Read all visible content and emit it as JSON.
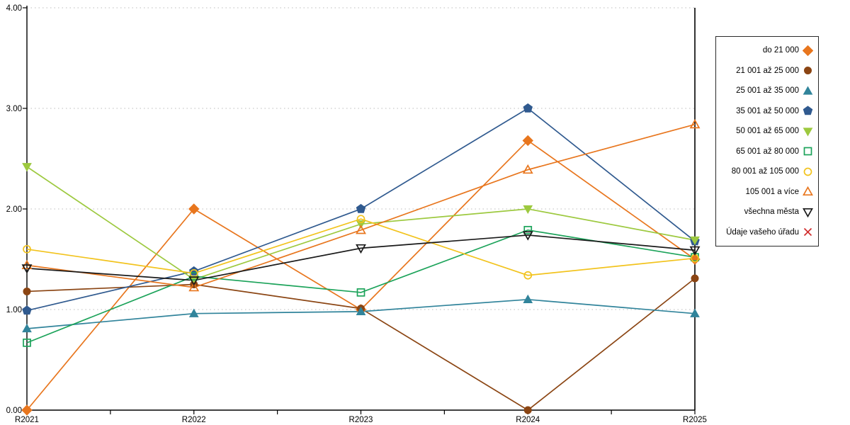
{
  "chart_data": {
    "type": "line",
    "title": "",
    "x_categories": [
      "R2021",
      "R2022",
      "R2023",
      "R2024",
      "R2025"
    ],
    "y_tick_labels": [
      "4.00",
      "3.00",
      "2.00",
      "1.00",
      "0.00"
    ],
    "y_tick_values": [
      4,
      3,
      2,
      1,
      0
    ],
    "ylim": [
      0,
      4
    ],
    "grid": "horizontal-dotted",
    "legend_position": "right",
    "colors": {
      "grid": "#bdbdbd",
      "axis": "#000000"
    },
    "series": [
      {
        "name": "do 21 000",
        "marker": "diamond",
        "style": "filled",
        "color": "#E8761E",
        "values": [
          0.0,
          2.0,
          1.0,
          2.68,
          1.5
        ]
      },
      {
        "name": "21 001 až 25 000",
        "marker": "circle",
        "style": "filled",
        "color": "#8B4513",
        "values": [
          1.18,
          1.25,
          1.01,
          0.0,
          1.31
        ]
      },
      {
        "name": "25 001 až 35 000",
        "marker": "triangle-up",
        "style": "filled",
        "color": "#31849B",
        "values": [
          0.81,
          0.96,
          0.98,
          1.1,
          0.96
        ]
      },
      {
        "name": "35 001 až 50 000",
        "marker": "pentagon",
        "style": "filled",
        "color": "#305A8F",
        "values": [
          0.99,
          1.38,
          2.0,
          3.0,
          1.68
        ]
      },
      {
        "name": "50 001 až 65 000",
        "marker": "triangle-down",
        "style": "filled",
        "color": "#9DC93F",
        "values": [
          2.42,
          1.3,
          1.85,
          2.0,
          1.69
        ]
      },
      {
        "name": "65 001 až 80 000",
        "marker": "square",
        "style": "open",
        "color": "#1CA35A",
        "values": [
          0.67,
          1.33,
          1.17,
          1.79,
          1.52
        ]
      },
      {
        "name": "80 001 až 105 000",
        "marker": "circle",
        "style": "open",
        "color": "#F2C31D",
        "values": [
          1.6,
          1.36,
          1.9,
          1.34,
          1.51
        ]
      },
      {
        "name": "105 001 a více",
        "marker": "triangle-up",
        "style": "open",
        "color": "#E8761E",
        "values": [
          1.44,
          1.22,
          1.79,
          2.39,
          2.84
        ]
      },
      {
        "name": "všechna města",
        "marker": "triangle-down",
        "style": "open",
        "color": "#1A1A1A",
        "values": [
          1.41,
          1.29,
          1.61,
          1.74,
          1.59
        ]
      },
      {
        "name": "Údaje vašeho úřadu",
        "marker": "x",
        "style": "open",
        "color": "#D12F2F",
        "values": []
      }
    ]
  }
}
